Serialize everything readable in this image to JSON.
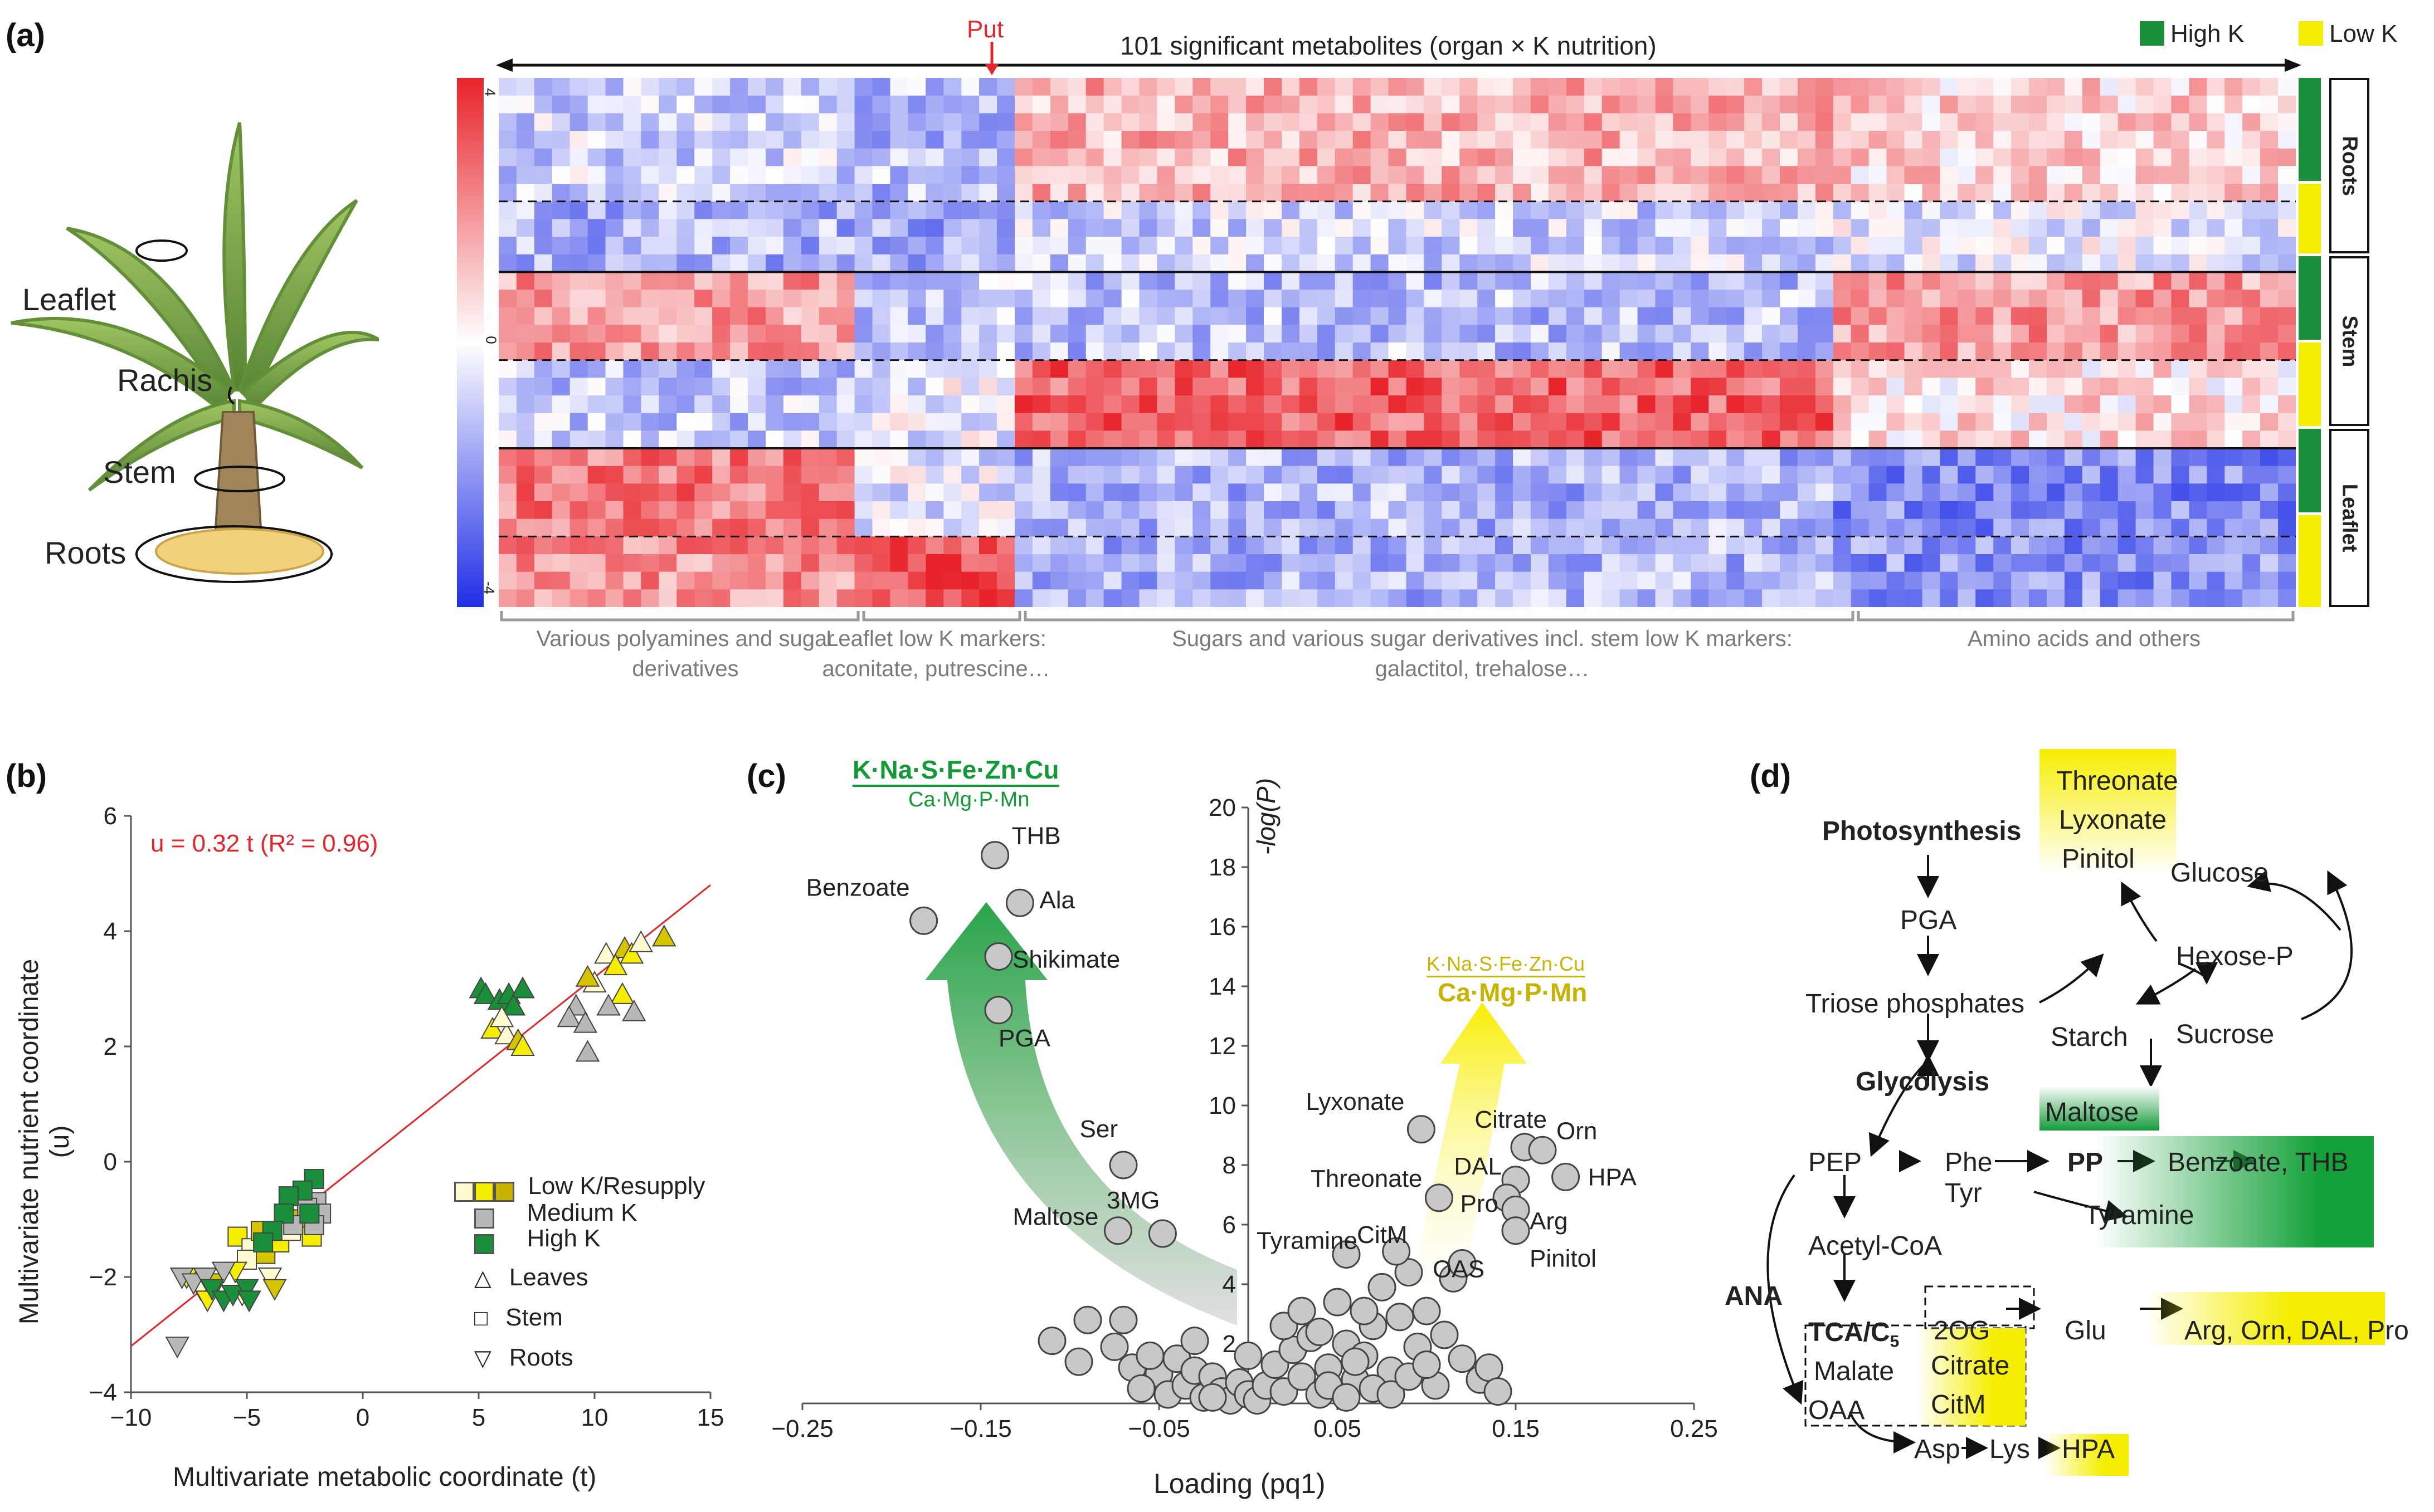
{
  "panels": {
    "a": "(a)",
    "b": "(b)",
    "c": "(c)",
    "d": "(d)"
  },
  "panel_a": {
    "plant_labels": [
      "Leaflet",
      "Rachis",
      "Stem",
      "Roots"
    ],
    "top_title": "101 significant metabolites (organ × K nutrition)",
    "put_label": "Put",
    "legend": {
      "high": "High K",
      "low": "Low K"
    },
    "colorbar": {
      "max": "4",
      "mid": "0",
      "min": "-4"
    },
    "organs": [
      "Roots",
      "Stem",
      "Leaflet"
    ],
    "groups": [
      "Various polyamines and sugar derivatives",
      "Leaflet low K markers: aconitate, putrescine…",
      "Sugars and various sugar derivatives incl. stem low K markers: galactitol, trehalose…",
      "Amino acids and others"
    ],
    "colors": {
      "high": "#1a8f3a",
      "low": "#f5ee00",
      "red": "#e8232a",
      "blue": "#1f2ee6"
    }
  },
  "chart_data": [
    {
      "type": "scatter",
      "title": "",
      "xlabel": "Multivariate metabolic coordinate (t)",
      "ylabel": "Multivariate nutrient coordinate (u)",
      "xlim": [
        -10,
        15
      ],
      "ylim": [
        -4,
        6
      ],
      "xticks": [
        -10,
        -5,
        0,
        5,
        10,
        15
      ],
      "yticks": [
        -4,
        -2,
        0,
        2,
        4,
        6
      ],
      "regression": {
        "label": "u = 0.32 t (R² = 0.96)",
        "slope": 0.32
      },
      "legend": [
        {
          "label": "Low K/Resupply"
        },
        {
          "label": "Medium  K"
        },
        {
          "label": "High  K"
        },
        {
          "label": "Leaves"
        },
        {
          "label": "Stem"
        },
        {
          "label": "Roots"
        }
      ],
      "series": [
        {
          "name": "Leaves High K",
          "points": [
            [
              5.1,
              3.0
            ],
            [
              5.3,
              2.9
            ],
            [
              5.9,
              2.8
            ],
            [
              6.3,
              2.9
            ],
            [
              6.9,
              3.0
            ],
            [
              6.5,
              2.7
            ]
          ]
        },
        {
          "name": "Leaves Low K",
          "points": [
            [
              5.6,
              2.3
            ],
            [
              6.2,
              2.2
            ],
            [
              6.7,
              2.1
            ],
            [
              6.9,
              2.0
            ],
            [
              10.5,
              3.6
            ],
            [
              11.3,
              3.7
            ],
            [
              11.6,
              3.6
            ],
            [
              12.0,
              3.8
            ],
            [
              13.0,
              3.9
            ],
            [
              10.9,
              3.4
            ],
            [
              10.0,
              3.1
            ],
            [
              9.7,
              3.2
            ],
            [
              11.2,
              2.9
            ],
            [
              6.0,
              2.5
            ]
          ]
        },
        {
          "name": "Leaves Medium K",
          "points": [
            [
              9.2,
              2.7
            ],
            [
              8.9,
              2.5
            ],
            [
              9.6,
              2.4
            ],
            [
              10.6,
              2.7
            ],
            [
              11.7,
              2.6
            ],
            [
              9.7,
              1.9
            ]
          ]
        },
        {
          "name": "Stem Low K",
          "points": [
            [
              -5.4,
              -1.3
            ],
            [
              -4.8,
              -1.5
            ],
            [
              -4.2,
              -1.6
            ],
            [
              -3.6,
              -1.4
            ],
            [
              -3.1,
              -1.2
            ],
            [
              -2.6,
              -1.0
            ],
            [
              -2.2,
              -1.3
            ],
            [
              -5.0,
              -1.7
            ],
            [
              -4.4,
              -1.2
            ]
          ]
        },
        {
          "name": "Stem Medium K",
          "points": [
            [
              -2.0,
              -0.7
            ],
            [
              -1.8,
              -0.9
            ],
            [
              -2.4,
              -0.8
            ],
            [
              -3.0,
              -1.1
            ],
            [
              -2.1,
              -1.1
            ]
          ]
        },
        {
          "name": "Stem High K",
          "points": [
            [
              -2.1,
              -0.3
            ],
            [
              -2.6,
              -0.5
            ],
            [
              -3.2,
              -0.6
            ],
            [
              -3.4,
              -0.9
            ],
            [
              -3.9,
              -1.2
            ],
            [
              -4.3,
              -1.4
            ],
            [
              -2.3,
              -0.9
            ]
          ]
        },
        {
          "name": "Roots Low K",
          "points": [
            [
              -7.6,
              -2.0
            ],
            [
              -7.0,
              -2.2
            ],
            [
              -6.3,
              -2.1
            ],
            [
              -5.5,
              -1.9
            ],
            [
              -4.0,
              -2.0
            ],
            [
              -3.8,
              -2.2
            ],
            [
              -6.7,
              -2.4
            ],
            [
              -5.2,
              -2.3
            ]
          ]
        },
        {
          "name": "Roots Medium K",
          "points": [
            [
              -8.0,
              -3.2
            ],
            [
              -7.8,
              -2.0
            ],
            [
              -7.3,
              -2.1
            ],
            [
              -6.8,
              -2.0
            ],
            [
              -6.0,
              -1.9
            ]
          ]
        },
        {
          "name": "Roots High K",
          "points": [
            [
              -6.5,
              -2.2
            ],
            [
              -6.0,
              -2.4
            ],
            [
              -5.6,
              -2.3
            ],
            [
              -5.0,
              -2.2
            ],
            [
              -4.9,
              -2.4
            ]
          ]
        }
      ]
    },
    {
      "type": "scatter",
      "xlabel": "Loading (pq1)",
      "ylabel": "-log(P)",
      "xlim": [
        -0.25,
        0.25
      ],
      "ylim": [
        0,
        20
      ],
      "xticks": [
        "−0.25",
        "−0.15",
        "−0.05",
        "0.05",
        "0.15",
        "0.25"
      ],
      "yticks": [
        2,
        4,
        6,
        8,
        10,
        12,
        14,
        16,
        18,
        20
      ],
      "left_header": {
        "num": "K·Na·S·Fe·Zn·Cu",
        "den": "Ca·Mg·P·Mn"
      },
      "right_header": {
        "num": "K·Na·S·Fe·Zn·Cu",
        "den": "Ca·Mg·P·Mn"
      },
      "labeled_points": [
        {
          "label": "THB",
          "x": -0.142,
          "y": 18.4
        },
        {
          "label": "Benzoate",
          "x": -0.182,
          "y": 16.2
        },
        {
          "label": "Ala",
          "x": -0.128,
          "y": 16.8
        },
        {
          "label": "Shikimate",
          "x": -0.14,
          "y": 15.0
        },
        {
          "label": "PGA",
          "x": -0.14,
          "y": 13.2
        },
        {
          "label": "Ser",
          "x": -0.07,
          "y": 8.0
        },
        {
          "label": "Maltose",
          "x": -0.073,
          "y": 5.8
        },
        {
          "label": "3MG",
          "x": -0.048,
          "y": 5.7
        },
        {
          "label": "Lyxonate",
          "x": 0.097,
          "y": 9.2
        },
        {
          "label": "Citrate",
          "x": 0.155,
          "y": 8.6
        },
        {
          "label": "Orn",
          "x": 0.165,
          "y": 8.5
        },
        {
          "label": "DAL",
          "x": 0.15,
          "y": 7.5
        },
        {
          "label": "HPA",
          "x": 0.178,
          "y": 7.6
        },
        {
          "label": "Threonate",
          "x": 0.107,
          "y": 6.9
        },
        {
          "label": "Pro",
          "x": 0.145,
          "y": 6.9
        },
        {
          "label": "Arg",
          "x": 0.15,
          "y": 6.5
        },
        {
          "label": "Tyramine",
          "x": 0.055,
          "y": 5.0
        },
        {
          "label": "CitM",
          "x": 0.083,
          "y": 5.1
        },
        {
          "label": "Pinitol",
          "x": 0.15,
          "y": 5.8
        },
        {
          "label": "OAS",
          "x": 0.12,
          "y": 4.7
        }
      ],
      "cloud_points": [
        [
          -0.11,
          2.1
        ],
        [
          -0.095,
          1.4
        ],
        [
          -0.09,
          2.8
        ],
        [
          -0.075,
          1.9
        ],
        [
          -0.07,
          2.8
        ],
        [
          -0.065,
          1.2
        ],
        [
          -0.05,
          1.0
        ],
        [
          -0.045,
          0.3
        ],
        [
          -0.04,
          1.5
        ],
        [
          -0.035,
          0.6
        ],
        [
          -0.03,
          1.1
        ],
        [
          -0.025,
          0.2
        ],
        [
          -0.02,
          0.9
        ],
        [
          -0.015,
          0.4
        ],
        [
          -0.01,
          0.1
        ],
        [
          -0.005,
          0.7
        ],
        [
          0.0,
          0.3
        ],
        [
          0.005,
          0.1
        ],
        [
          0.01,
          0.6
        ],
        [
          0.015,
          1.3
        ],
        [
          0.02,
          0.4
        ],
        [
          0.025,
          1.8
        ],
        [
          0.03,
          0.9
        ],
        [
          0.035,
          2.2
        ],
        [
          0.04,
          0.3
        ],
        [
          0.045,
          1.2
        ],
        [
          0.05,
          3.4
        ],
        [
          0.055,
          2.0
        ],
        [
          0.06,
          0.8
        ],
        [
          0.065,
          1.6
        ],
        [
          0.07,
          2.6
        ],
        [
          0.075,
          3.9
        ],
        [
          0.08,
          1.1
        ],
        [
          0.085,
          2.9
        ],
        [
          0.09,
          4.4
        ],
        [
          0.095,
          1.9
        ],
        [
          0.1,
          3.1
        ],
        [
          0.105,
          0.6
        ],
        [
          0.11,
          2.3
        ],
        [
          0.115,
          4.2
        ],
        [
          0.12,
          1.5
        ],
        [
          0.13,
          0.8
        ],
        [
          0.135,
          1.2
        ],
        [
          0.14,
          0.4
        ],
        [
          0.045,
          0.6
        ],
        [
          0.055,
          0.2
        ],
        [
          0.06,
          1.4
        ],
        [
          0.07,
          0.5
        ],
        [
          0.08,
          0.3
        ],
        [
          0.09,
          0.9
        ],
        [
          -0.06,
          0.5
        ],
        [
          -0.055,
          1.6
        ],
        [
          -0.03,
          2.1
        ],
        [
          -0.02,
          0.2
        ],
        [
          0.0,
          1.6
        ],
        [
          0.02,
          2.6
        ],
        [
          0.03,
          3.1
        ],
        [
          0.04,
          2.4
        ],
        [
          0.065,
          3.1
        ],
        [
          0.1,
          1.3
        ]
      ]
    }
  ],
  "panel_d": {
    "photosynthesis": "Photosynthesis",
    "threonate": "Threonate",
    "lyxonate": "Lyxonate",
    "pinitol": "Pinitol",
    "glucose": "Glucose",
    "pga": "PGA",
    "hexose_p": "Hexose-P",
    "triose": "Triose phosphates",
    "starch": "Starch",
    "sucrose": "Sucrose",
    "glycolysis": "Glycolysis",
    "maltose": "Maltose",
    "pep": "PEP",
    "phe": "Phe",
    "pp": "PP",
    "benzoate_thb": "Benzoate, THB",
    "tyr": "Tyr",
    "tyramine": "Tyramine",
    "acetyl_coa": "Acetyl-CoA",
    "ana": "ANA",
    "tca": "TCA/C",
    "tca_sub": "5",
    "og": "2OG",
    "glu": "Glu",
    "arg_group": "Arg, Orn, DAL, Pro",
    "malate": "Malate",
    "citrate": "Citrate",
    "oaa": "OAA",
    "citm": "CitM",
    "asp": "Asp",
    "lys": "Lys",
    "hpa": "HPA"
  }
}
